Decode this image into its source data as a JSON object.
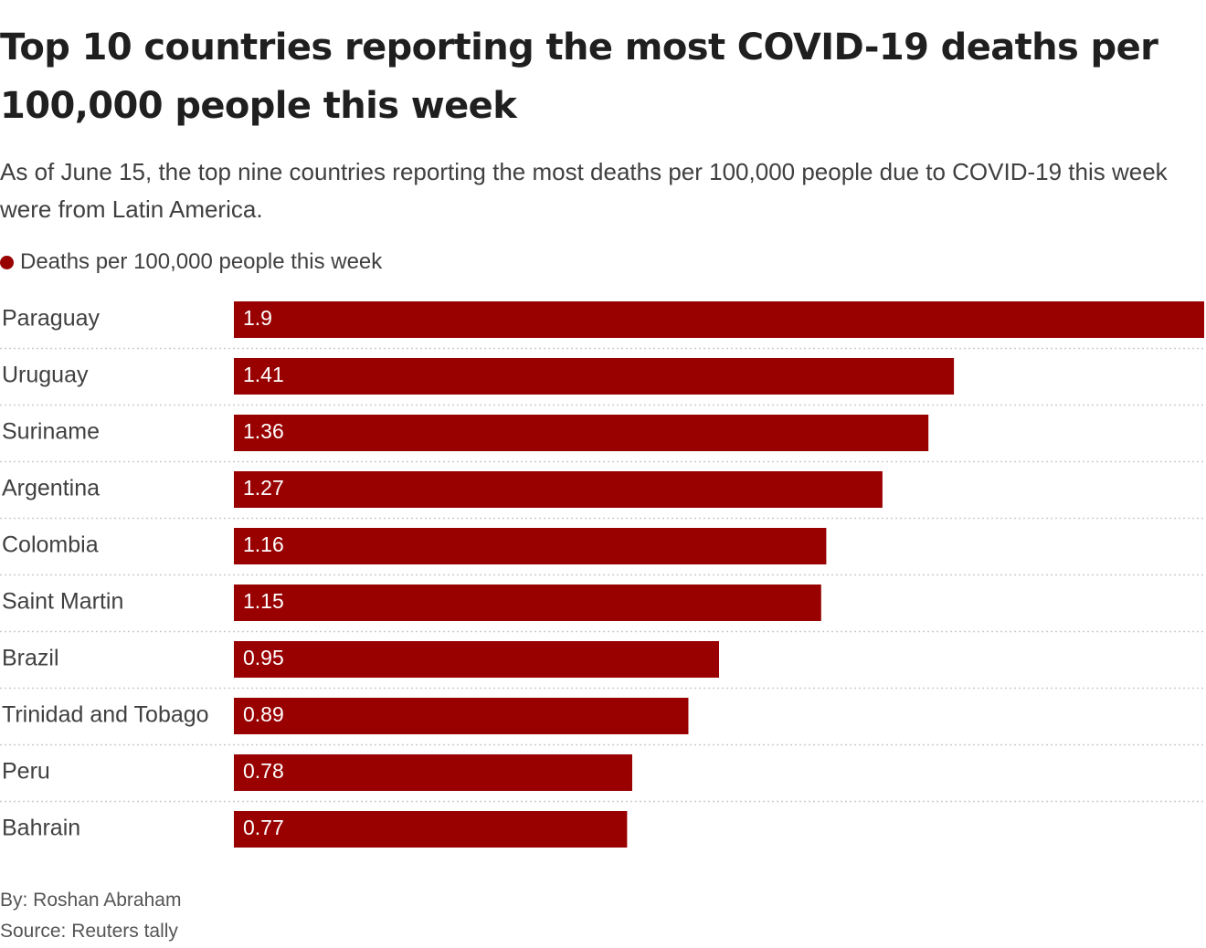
{
  "title": "Top 10 countries reporting the most COVID-19 deaths per 100,000 people this week",
  "subtitle": "As of June 15, the top nine countries reporting the most deaths per 100,000 people due to COVID-19 this week were from Latin America.",
  "legend": {
    "label": "Deaths per 100,000 people this week",
    "color": "#990000"
  },
  "footer": {
    "byline": "By: Roshan Abraham",
    "source": "Source: Reuters tally"
  },
  "chart_data": {
    "type": "bar",
    "orientation": "horizontal",
    "categories": [
      "Paraguay",
      "Uruguay",
      "Suriname",
      "Argentina",
      "Colombia",
      "Saint Martin",
      "Brazil",
      "Trinidad and Tobago",
      "Peru",
      "Bahrain"
    ],
    "series": [
      {
        "name": "Deaths per 100,000 people this week",
        "values": [
          1.9,
          1.41,
          1.36,
          1.27,
          1.16,
          1.15,
          0.95,
          0.89,
          0.78,
          0.77
        ],
        "labels": [
          "1.9",
          "1.41",
          "1.36",
          "1.27",
          "1.16",
          "1.15",
          "0.95",
          "0.89",
          "0.78",
          "0.77"
        ],
        "color": "#990000"
      }
    ],
    "xlim": [
      0,
      1.9
    ],
    "grid": false,
    "legend_position": "top-left"
  }
}
